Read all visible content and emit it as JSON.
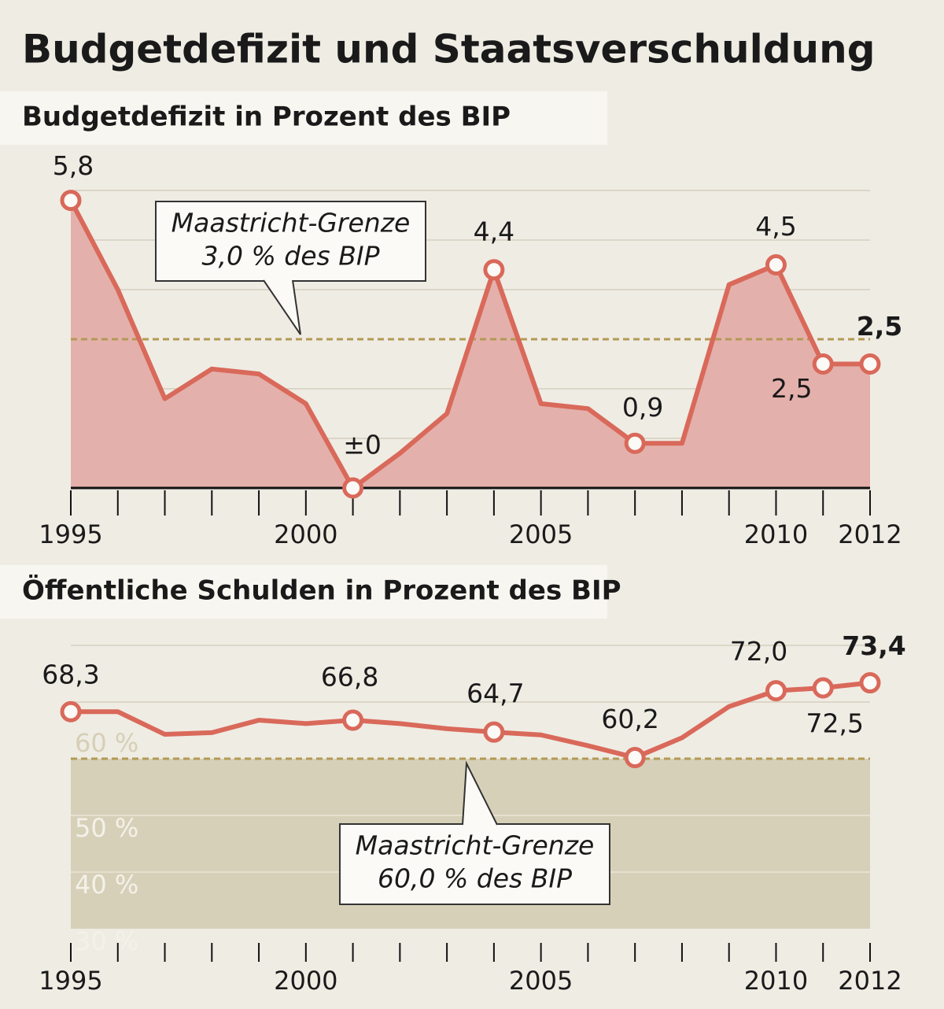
{
  "title": "Budgetdefizit und Staatsverschuldung",
  "chart_data": [
    {
      "type": "line",
      "title": "Budgetdefizit in Prozent des BIP",
      "x": [
        1995,
        1996,
        1997,
        1998,
        1999,
        2000,
        2001,
        2002,
        2003,
        2004,
        2005,
        2006,
        2007,
        2008,
        2009,
        2010,
        2011,
        2012
      ],
      "values": [
        5.8,
        4.0,
        1.8,
        2.4,
        2.3,
        1.7,
        0,
        0.7,
        1.5,
        4.4,
        1.7,
        1.6,
        0.9,
        0.9,
        4.1,
        4.5,
        2.5,
        2.5
      ],
      "value_labels": [
        "5,8",
        null,
        null,
        null,
        null,
        null,
        "±0",
        null,
        null,
        "4,4",
        null,
        null,
        "0,9",
        null,
        null,
        "4,5",
        "2,5",
        "2,5"
      ],
      "color": "#d9695a",
      "area": true,
      "area_color": "#e4b0ab",
      "xlim": [
        1995,
        2012
      ],
      "xticks": [
        1995,
        2000,
        2005,
        2010,
        2012
      ],
      "ylim": [
        0,
        6
      ],
      "grid_values": [
        1,
        2,
        4,
        5,
        6
      ],
      "threshold": 3,
      "annotation": [
        "Maastricht-Grenze",
        "3,0 % des BIP"
      ]
    },
    {
      "type": "line",
      "title": "Öffentliche Schulden in Prozent des BIP",
      "x": [
        1995,
        1996,
        1997,
        1998,
        1999,
        2000,
        2001,
        2002,
        2003,
        2004,
        2005,
        2006,
        2007,
        2008,
        2009,
        2010,
        2011,
        2012
      ],
      "values": [
        68.3,
        68.3,
        64.3,
        64.6,
        66.8,
        66.2,
        66.8,
        66.2,
        65.3,
        64.7,
        64.2,
        62.3,
        60.2,
        63.7,
        69.2,
        72.0,
        72.5,
        73.4
      ],
      "value_labels": [
        "68,3",
        null,
        null,
        null,
        null,
        null,
        "66,8",
        null,
        null,
        "64,7",
        null,
        null,
        "60,2",
        null,
        null,
        "72,0",
        "72,5",
        "73,4"
      ],
      "color": "#d9695a",
      "shade_below_threshold": true,
      "shade_color": "#d6d0b9",
      "xlim": [
        1995,
        2012
      ],
      "xticks": [
        1995,
        2000,
        2005,
        2010,
        2012
      ],
      "ylim": [
        30,
        80
      ],
      "yticks": [
        {
          "value": 30,
          "label": "30 %"
        },
        {
          "value": 40,
          "label": "40 %"
        },
        {
          "value": 50,
          "label": "50 %"
        },
        {
          "value": 60,
          "label": "60 %"
        }
      ],
      "grid_values": [
        40,
        50,
        70,
        80
      ],
      "threshold": 60,
      "annotation": [
        "Maastricht-Grenze",
        "60,0 % des BIP"
      ]
    }
  ]
}
